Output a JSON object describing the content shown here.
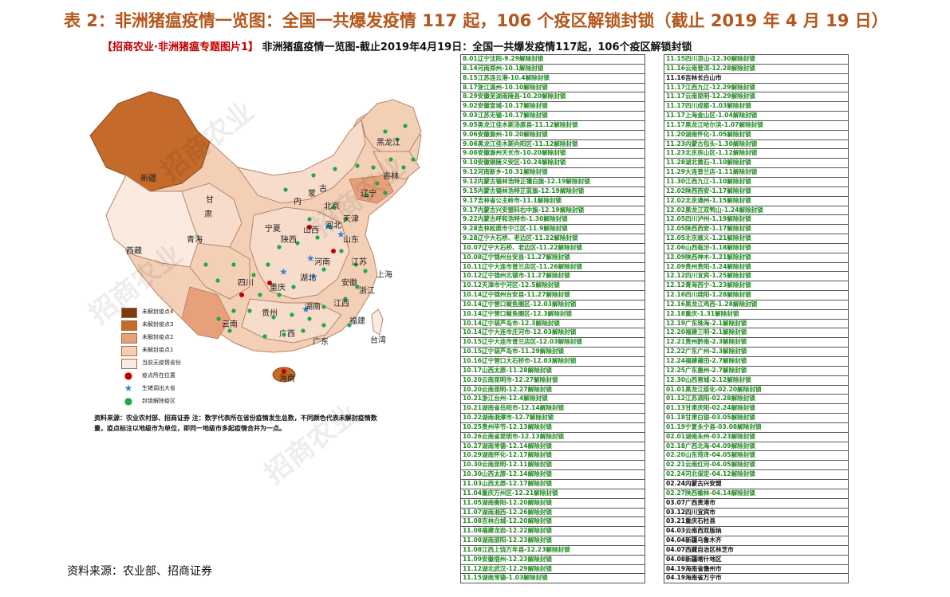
{
  "title": "表 2：非洲猪瘟疫情一览图：全国一共爆发疫情 117 起，106 个疫区解锁封锁（截止 2019 年 4 月 19 日）",
  "subtitle_tag": "【招商农业·非洲猪瘟专题图片1】",
  "subtitle_text": "非洲猪瘟疫情一览图-截止2019年4月19日：全国一共爆发疫情117起，106个疫区解锁封锁",
  "colors": {
    "level4": "#7b3a10",
    "level3": "#c46a2a",
    "level2": "#e8a07a",
    "level1": "#f3cfb6",
    "level0": "#fbeadf",
    "dot_red": "#c00000",
    "star_blue": "#2f86d6",
    "dot_green": "#1fa84a",
    "title": "#b5561c",
    "table_green": "#1f8a1f"
  },
  "legend": [
    {
      "label": "未解封疫点4",
      "type": "swatch",
      "color": "#7b3a10"
    },
    {
      "label": "未解封疫点3",
      "type": "swatch",
      "color": "#c46a2a"
    },
    {
      "label": "未解封疫点2",
      "type": "swatch",
      "color": "#e8a07a"
    },
    {
      "label": "未解封疫点1",
      "type": "swatch",
      "color": "#f3cfb6"
    },
    {
      "label": "当前无疫情省份",
      "type": "swatch",
      "color": "#fbeadf"
    },
    {
      "label": "疫点所在位置",
      "type": "dot",
      "color": "#c00000"
    },
    {
      "label": "生猪调出大省",
      "type": "star",
      "color": "#2f86d6"
    },
    {
      "label": "封锁解除疫区",
      "type": "dot",
      "color": "#1fa84a"
    }
  ],
  "provinces": [
    {
      "label": "新疆"
    },
    {
      "label": "西藏"
    },
    {
      "label": "青海"
    },
    {
      "label": "甘"
    },
    {
      "label": "肃"
    },
    {
      "label": "内"
    },
    {
      "label": "蒙"
    },
    {
      "label": "古"
    },
    {
      "label": "黑龙江"
    },
    {
      "label": "吉林"
    },
    {
      "label": "辽宁"
    },
    {
      "label": "北京"
    },
    {
      "label": "天津"
    },
    {
      "label": "河北"
    },
    {
      "label": "山西"
    },
    {
      "label": "陕西"
    },
    {
      "label": "宁夏"
    },
    {
      "label": "山东"
    },
    {
      "label": "河南"
    },
    {
      "label": "江苏"
    },
    {
      "label": "上海"
    },
    {
      "label": "湖北"
    },
    {
      "label": "安徽"
    },
    {
      "label": "四川"
    },
    {
      "label": "重庆"
    },
    {
      "label": "浙江"
    },
    {
      "label": "江西"
    },
    {
      "label": "湖南"
    },
    {
      "label": "贵州"
    },
    {
      "label": "云南"
    },
    {
      "label": "福建"
    },
    {
      "label": "广西"
    },
    {
      "label": "广东"
    },
    {
      "label": "台湾"
    },
    {
      "label": "海南"
    }
  ],
  "source_note": "资料来源：农业农村部、招商证券  注：数字代表所在省份疫情发生总数，不同颜色代表未解封疫情数量，疫点标注以地级市为单位，即同一地级市多起疫情合并为一点。",
  "watermarks": [
    "招商农业",
    "招商农业",
    "招商农业",
    "招商农业"
  ],
  "footer": "资料来源：农业部、招商证券",
  "table_left": [
    "8.01辽宁沈阳-9.29解除封锁",
    "8.14河南郑州-10.1解除封锁",
    "8.15江苏连云港-10.4解除封锁",
    "8.17浙江温州-10.10解除封锁",
    "8.29安徽芜湖南陵县-10.20解除封锁",
    "9.02安徽宣城-10.17解除封锁",
    "9.03江苏无锡-10.17解除封锁",
    "9.05黑龙江佳木斯汤原县-11.12解除封锁",
    "9.06安徽滁州-10.20解除封锁",
    "9.06黑龙江佳木斯向阳区-11.12解除封锁",
    "9.06安徽滁州天长市-10.20解除封锁",
    "9.10安徽铜陵义安区-10.24解除封锁",
    "9.12河南新乡-10.31解除封锁",
    "9.12内蒙古锡林浩特正镶白旗-12.19解除封锁",
    "9.15内蒙古锡林浩特正蓝旗-12.19解除封锁",
    "9.17吉林省公主岭市-11.1解除封锁",
    "9.17内蒙古兴安盟科右中旗-12.19解除封锁",
    "9.22内蒙古呼和浩特市-1.30解除封锁",
    "9.28吉林松原市宁江区-11.9解除封锁",
    "9.28辽宁大石桥、老边区-11.22解除封锁",
    "10.07辽宁大石桥、老边区-11.22解除封锁",
    "10.08辽宁锦州台安县-11.27解除封锁",
    "10.11辽宁大连市普兰店区-11.26解除封锁",
    "10.12辽宁锦州北镇市-11.27解除封锁",
    "10.12天津市宁河区-12.5解除封锁",
    "10.14辽宁锦州台安县-11.27解除封锁",
    "10.14辽宁营口鲅鱼圈区-12.03解除封锁",
    "10.14辽宁营口鲅鱼圈区-12.3解除封锁",
    "10.14辽宁葫芦岛市-12.3解除封锁",
    "10.14辽宁大连市庄河市-12.03解除封锁",
    "10.15辽宁大连市普兰店区-12.03解除封锁",
    "10.15辽宁葫芦岛市-11.29解除封锁",
    "10.16辽宁营口大石桥市-12.03解除封锁",
    "10.17山西太原-11.28解除封锁",
    "10.20云南昆明市-12.27解除封锁",
    "10.20云南昆明-12.27解除封锁",
    "10.21浙江台州-12.4解除封锁",
    "10.21湖南省岳阳市-12.14解除封锁",
    "10.22湖南湘潭市-12.7解除封锁",
    "10.25贵州毕节-12.13解除封锁",
    "10.26云南省昆明市-12.13解除封锁",
    "10.27湖南常德-12.14解除封锁",
    "10.29湖南怀化-12.17解除封锁",
    "10.30云南昆明-12.11解除封锁",
    "10.30山西太原-12.14解除封锁",
    "11.03山西太原-12.17解除封锁",
    "11.04重庆万州区-12.21解除封锁",
    "11.05湖南衡阳-12.20解除封锁",
    "11.07湖南湘西-12.26解除封锁",
    "11.08吉林白城-12.20解除封锁",
    "11.08福建龙岩-12.22解除封锁",
    "11.08湖南邵阳-12.23解除封锁",
    "11.08江西上饶万年县-12.23解除封锁",
    "11.09安徽宿州-12.23解除封锁",
    "11.12湖北武汉-12.29解除封锁",
    "11.15湖南常德-1.03解除封锁"
  ],
  "table_right": [
    "11.15四川凉山-12.30解除封锁",
    "11.16云南普洱-12.28解除封锁",
    "11.16吉林长白山市",
    "11.17江西九江-12.29解除封锁",
    "11.17云南昆明-12.29解除封锁",
    "11.17四川成都-1.03解除封锁",
    "11.17上海金山区-1.04解除封锁",
    "11.17黑龙江哈尔滨-1.07解除封锁",
    "11.20湖南怀化-1.05解除封锁",
    "11.23内蒙古包头-1.30解除封锁",
    "11.23北京房山区-1.12解除封锁",
    "11.28湖北黄石-1.10解除封锁",
    "11.29大连普兰店-1.11解除封锁",
    "11.30江西九江-1.10解除封锁",
    "12.02陕西西安-1.17解除封锁",
    "12.02北京通州-1.15解除封锁",
    "12.02黑龙江双鸭山-1.24解除封锁",
    "12.05四川泸州-1.19解除封锁",
    "12.05陕西西安-1.17解除封锁",
    "12.05北京顺义-1.21解除封锁",
    "12.06山西临汾-1.18解除封锁",
    "12.09陕西神木-1.21解除封锁",
    "12.09贵州贵阳-1.24解除封锁",
    "12.12四川宜宾-1.25解除封锁",
    "12.12青海西宁-1.23解除封锁",
    "12.16四川绵阳-1.28解除封锁",
    "12.16黑龙江鸡西-1.28解除封锁",
    "12.18重庆-1.31解除封锁",
    "12.19广东珠海-2.1解除封锁",
    "12.20福建三明-2.1解除封锁",
    "12.21贵州黔南-2.3解除封锁",
    "12.22广东广州-2.3解除封锁",
    "12.24福建莆田-2.7解除封锁",
    "12.25广东惠州-2.7解除封锁",
    "12.30山西晋城-2.12解除封锁",
    "01.01黑龙江绥化-02.20解除封锁",
    "01.12江苏泗阳-02.28解除封锁",
    "01.13甘肃庆阳-02.24解除封锁",
    "01.18甘肃白银-03.05解除封锁",
    "01.19宁夏永宁县-03.08解除封锁",
    "02.01湖南永州-03.23解除封锁",
    "02.18广西北海-04.09解除封锁",
    "02.20山东菏泽-04.05解除封锁",
    "02.21云南红河-04.05解除封锁",
    "02.24河北保定-04.12解除封锁",
    "02.24内蒙古兴安盟",
    "02.27陕西榆林-04.14解除封锁",
    "03.07广西贵港市",
    "03.12四川宜宾市",
    "03.21重庆石柱县",
    "04.03云南西双版纳",
    "04.04新疆乌鲁木齐",
    "04.07西藏自治区林芝市",
    "04.08新疆喀什地区",
    "04.19海南省儋州市",
    "04.19海南省万宁市"
  ]
}
